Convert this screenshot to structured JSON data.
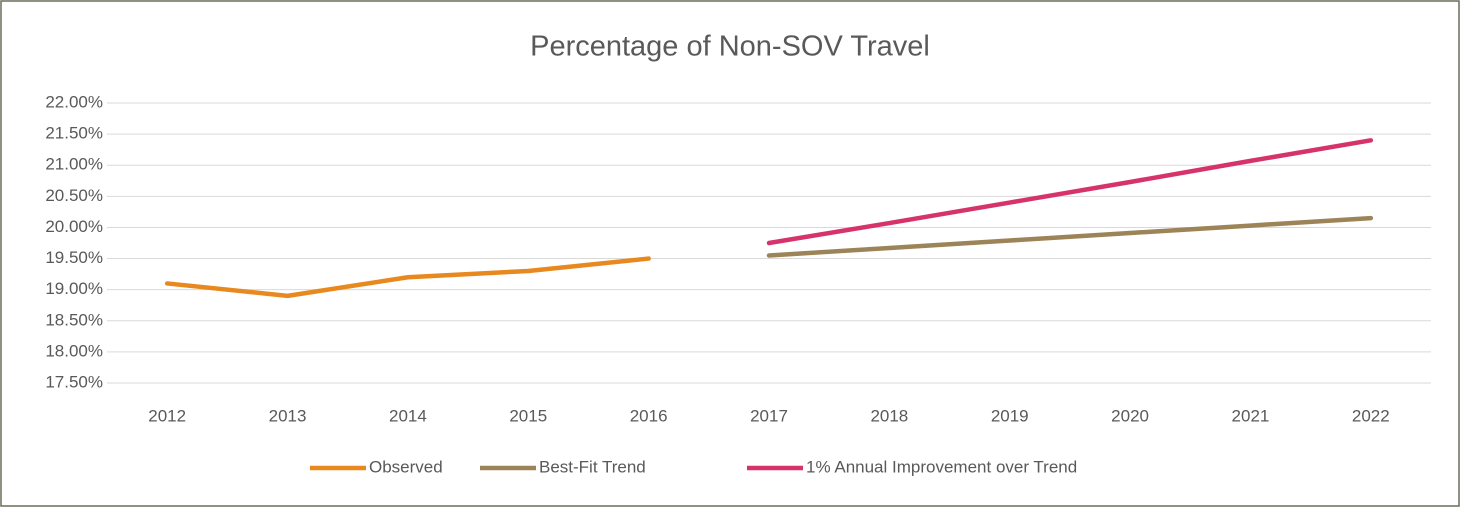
{
  "chart_data": {
    "type": "line",
    "title": "Percentage of Non-SOV Travel",
    "categories": [
      "2012",
      "2013",
      "2014",
      "2015",
      "2016",
      "2017",
      "2018",
      "2019",
      "2020",
      "2021",
      "2022"
    ],
    "series": [
      {
        "name": "Observed",
        "color": "#e8891f",
        "values": [
          19.1,
          18.9,
          19.2,
          19.3,
          19.5,
          null,
          null,
          null,
          null,
          null,
          null
        ]
      },
      {
        "name": "Best-Fit Trend",
        "color": "#9c8458",
        "values": [
          null,
          null,
          null,
          null,
          null,
          19.55,
          19.67,
          19.79,
          19.91,
          20.03,
          20.15
        ]
      },
      {
        "name": "1% Annual Improvement over Trend",
        "color": "#d6336c",
        "values": [
          null,
          null,
          null,
          null,
          null,
          19.75,
          20.07,
          20.4,
          20.73,
          21.07,
          21.4
        ]
      }
    ],
    "ylim": [
      17.5,
      22
    ],
    "yticks": [
      {
        "value": 17.5,
        "label": "17.50%"
      },
      {
        "value": 18,
        "label": "18.00%"
      },
      {
        "value": 18.5,
        "label": "18.50%"
      },
      {
        "value": 19,
        "label": "19.00%"
      },
      {
        "value": 19.5,
        "label": "19.50%"
      },
      {
        "value": 20,
        "label": "20.00%"
      },
      {
        "value": 20.5,
        "label": "20.50%"
      },
      {
        "value": 21,
        "label": "21.00%"
      },
      {
        "value": 21.5,
        "label": "21.50%"
      },
      {
        "value": 22,
        "label": "22.00%"
      }
    ],
    "grid": true,
    "legend": "bottom"
  }
}
